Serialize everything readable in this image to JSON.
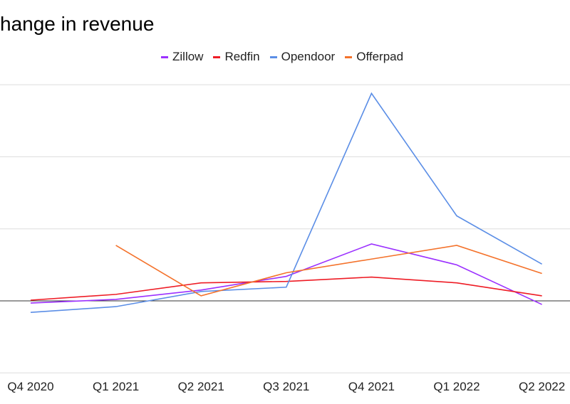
{
  "chart_data": {
    "type": "line",
    "title": "hange in revenue",
    "xlabel": "",
    "ylabel": "",
    "categories": [
      "Q4 2020",
      "Q1 2021",
      "Q2 2021",
      "Q3 2021",
      "Q4 2021",
      "Q1 2022",
      "Q2 2022"
    ],
    "ylim": [
      -1,
      3
    ],
    "grid": true,
    "legend_position": "top",
    "series": [
      {
        "name": "Zillow",
        "color": "#9b30ff",
        "values": [
          -0.03,
          0.02,
          0.15,
          0.34,
          0.79,
          0.5,
          -0.05
        ]
      },
      {
        "name": "Redfin",
        "color": "#ee1c25",
        "values": [
          0.01,
          0.09,
          0.25,
          0.27,
          0.33,
          0.25,
          0.07
        ]
      },
      {
        "name": "Opendoor",
        "color": "#5b8ee6",
        "values": [
          -0.16,
          -0.08,
          0.13,
          0.19,
          2.88,
          1.18,
          0.51
        ]
      },
      {
        "name": "Offerpad",
        "color": "#f4722b",
        "values": [
          null,
          0.77,
          0.07,
          0.39,
          0.58,
          0.77,
          0.38
        ]
      }
    ]
  }
}
